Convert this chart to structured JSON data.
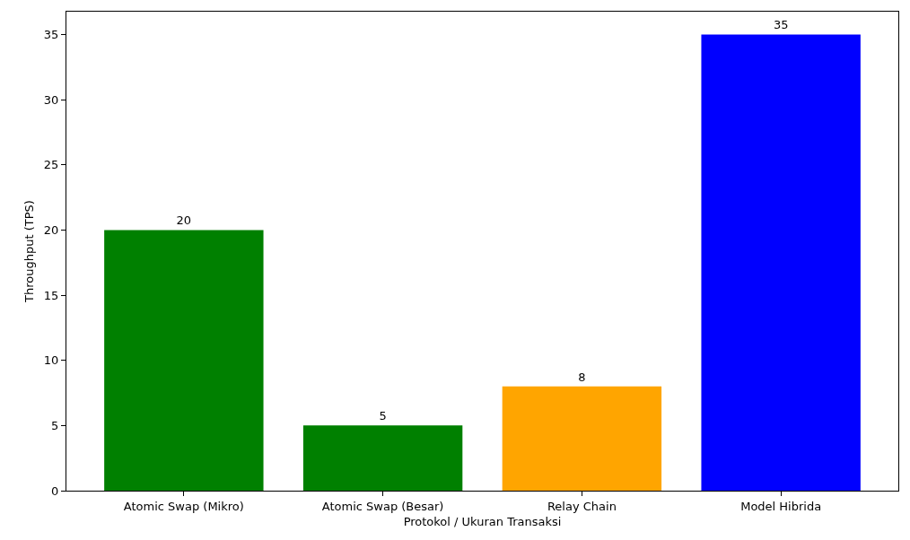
{
  "chart_data": {
    "type": "bar",
    "xlabel": "Protokol / Ukuran Transaksi",
    "ylabel": "Throughput (TPS)",
    "categories": [
      "Atomic Swap (Mikro)",
      "Atomic Swap (Besar)",
      "Relay Chain",
      "Model Hibrida"
    ],
    "values": [
      20,
      5,
      8,
      35
    ],
    "colors": [
      "#008000",
      "#008000",
      "#ffa500",
      "#0000ff"
    ],
    "ylim": [
      0,
      36.75
    ],
    "yticks": [
      0,
      5,
      10,
      15,
      20,
      25,
      30,
      35
    ],
    "data_labels": true
  }
}
